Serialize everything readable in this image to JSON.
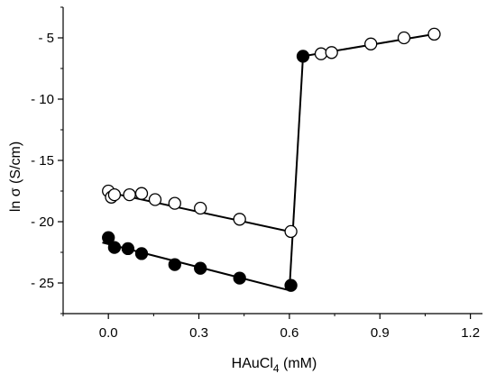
{
  "chart_data": {
    "type": "scatter",
    "title": "",
    "xlabel": "HAuCl",
    "xlabel_subscript": "4",
    "xlabel_suffix": " (mM)",
    "ylabel": "ln σ (S/cm)",
    "xlim": [
      -0.15,
      1.24
    ],
    "ylim": [
      -27.5,
      -2.5
    ],
    "x_ticks": [
      0.0,
      0.3,
      0.6,
      0.9,
      1.2
    ],
    "x_tick_labels": [
      "0.0",
      "0.3",
      "0.6",
      "0.9",
      "1.2"
    ],
    "y_ticks": [
      -5,
      -10,
      -15,
      -20,
      -25
    ],
    "y_tick_labels": [
      "- 5",
      "- 10",
      "- 15",
      "- 20",
      "- 25"
    ],
    "grid": false,
    "series": [
      {
        "marker": "open-circle",
        "x": [
          0.0,
          0.01,
          0.02,
          0.07,
          0.11,
          0.155,
          0.22,
          0.305,
          0.435,
          0.605
        ],
        "y": [
          -17.5,
          -18.0,
          -17.8,
          -17.8,
          -17.7,
          -18.2,
          -18.5,
          -18.9,
          -19.8,
          -20.8
        ]
      },
      {
        "marker": "filled-circle",
        "x": [
          0.0,
          0.02,
          0.065,
          0.11,
          0.22,
          0.305,
          0.435,
          0.605
        ],
        "y": [
          -21.3,
          -22.1,
          -22.2,
          -22.6,
          -23.5,
          -23.8,
          -24.6,
          -25.2
        ]
      },
      {
        "marker": "filled-circle",
        "x": [
          0.645
        ],
        "y": [
          -6.5
        ]
      },
      {
        "marker": "open-circle",
        "x": [
          0.705,
          0.74,
          0.87,
          0.98,
          1.08
        ],
        "y": [
          -6.3,
          -6.2,
          -5.5,
          -5.0,
          -4.7
        ]
      }
    ],
    "lines": [
      {
        "style": "solid",
        "x": [
          -0.02,
          0.6
        ],
        "y": [
          -21.7,
          -25.6
        ]
      },
      {
        "style": "solid",
        "x": [
          0.6,
          0.645
        ],
        "y": [
          -25.6,
          -6.5
        ]
      },
      {
        "style": "solid",
        "x": [
          0.0,
          0.6
        ],
        "y": [
          -17.6,
          -20.8
        ]
      },
      {
        "style": "solid",
        "x": [
          0.645,
          1.08
        ],
        "y": [
          -6.5,
          -4.7
        ]
      }
    ]
  }
}
